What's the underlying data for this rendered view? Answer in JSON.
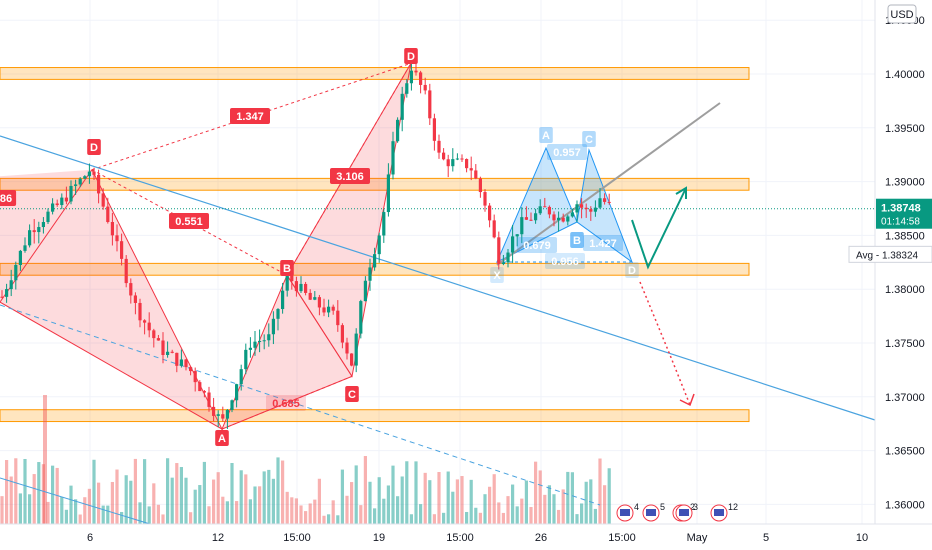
{
  "chart_data": {
    "type": "candlestick",
    "currency": "USD",
    "y_ticks": [
      1.36,
      1.365,
      1.37,
      1.375,
      1.38,
      1.385,
      1.39,
      1.395,
      1.4,
      1.405
    ],
    "y_tick_labels": [
      "1.36000",
      "1.36500",
      "1.37000",
      "1.37500",
      "1.38000",
      "1.38500",
      "1.39000",
      "1.39500",
      "1.40000",
      "1.40500"
    ],
    "x_tick_labels": [
      "6",
      "12",
      "15:00",
      "19",
      "15:00",
      "26",
      "15:00",
      "May",
      "5",
      "10"
    ],
    "last_price": {
      "value": 1.38748,
      "label": "1.38748",
      "countdown": "01:14:58"
    },
    "avg_price": {
      "value": 1.38324,
      "label": "Avg - 1.38324"
    },
    "zones": [
      {
        "from": 1.3995,
        "to": 1.4006
      },
      {
        "from": 1.3892,
        "to": 1.3903
      },
      {
        "from": 1.3813,
        "to": 1.3824
      },
      {
        "from": 1.3677,
        "to": 1.3688
      }
    ],
    "bear_pattern": {
      "points": [
        {
          "label": "X",
          "price": 1.3788
        },
        {
          "label": "D",
          "price": 1.3911
        },
        {
          "label": "B",
          "price": 1.3813
        },
        {
          "label": "C",
          "price": 1.3719
        },
        {
          "label": "A",
          "price": 1.367
        },
        {
          "label": "D",
          "price": 1.401
        }
      ],
      "ratios": [
        "1.347",
        "0.551",
        "3.106",
        "0.685"
      ],
      "left_value": "86"
    },
    "bull_pattern": {
      "points": [
        "X",
        "A",
        "B",
        "C",
        "D"
      ],
      "ratios": [
        "0.957",
        "0.679",
        "1.427",
        "0.956"
      ]
    },
    "volume_badges": [
      "4",
      "5",
      "2",
      "3",
      "12"
    ]
  }
}
